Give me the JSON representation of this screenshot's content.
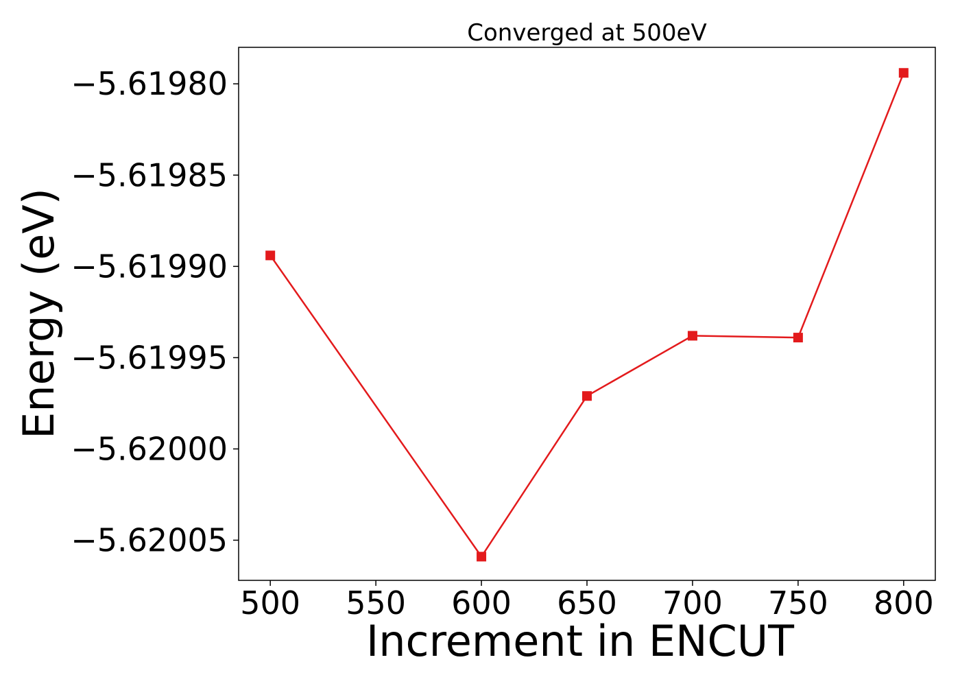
{
  "chart_data": {
    "type": "line",
    "title": "Converged at 500eV",
    "xlabel": "Increment in ENCUT",
    "ylabel": "Energy (eV)",
    "x": [
      500,
      600,
      650,
      700,
      750,
      800
    ],
    "series": [
      {
        "values": [
          -5.619894,
          -5.620059,
          -5.619971,
          -5.619938,
          -5.619939,
          -5.619794
        ],
        "color": "#e31a1c",
        "marker": "square"
      }
    ],
    "xlim": [
      485,
      815
    ],
    "ylim": [
      -5.620072,
      -5.61978
    ],
    "xticks": [
      500,
      550,
      600,
      650,
      700,
      750,
      800
    ],
    "xtick_labels": [
      "500",
      "550",
      "600",
      "650",
      "700",
      "750",
      "800"
    ],
    "yticks": [
      -5.6198,
      -5.61985,
      -5.6199,
      -5.61995,
      -5.62,
      -5.62005
    ],
    "ytick_labels": [
      "−5.61980",
      "−5.61985",
      "−5.61990",
      "−5.61995",
      "−5.62000",
      "−5.62005"
    ],
    "grid": false,
    "legend": "none"
  }
}
